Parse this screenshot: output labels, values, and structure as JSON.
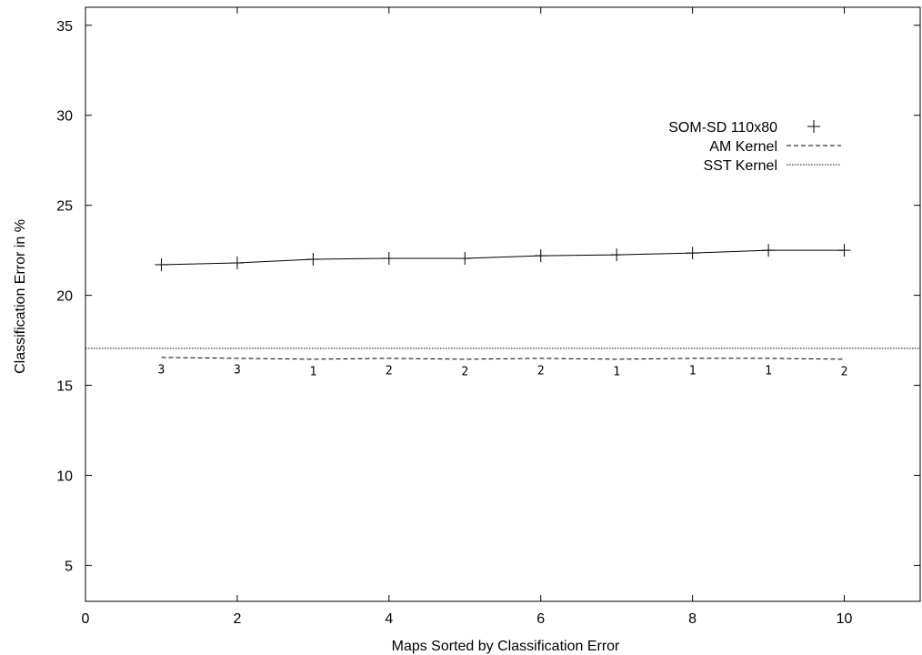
{
  "chart_data": {
    "type": "line",
    "title": "",
    "xlabel": "Maps Sorted by Classification Error",
    "ylabel": "Classification Error in %",
    "xlim": [
      0,
      11
    ],
    "ylim": [
      3,
      36
    ],
    "xticks": [
      0,
      2,
      4,
      6,
      8,
      10
    ],
    "yticks": [
      5,
      10,
      15,
      20,
      25,
      30,
      35
    ],
    "grid": false,
    "legend_position": "top-right",
    "series": [
      {
        "name": "SOM-SD 110x80",
        "style": "solid-with-plus-markers",
        "x": [
          1,
          2,
          3,
          4,
          5,
          6,
          7,
          8,
          9,
          10
        ],
        "y": [
          21.7,
          21.8,
          22.0,
          22.05,
          22.05,
          22.2,
          22.25,
          22.35,
          22.5,
          22.5
        ]
      },
      {
        "name": "AM Kernel",
        "style": "dashed",
        "x": [
          1,
          2,
          3,
          4,
          5,
          6,
          7,
          8,
          9,
          10
        ],
        "y": [
          16.55,
          16.5,
          16.45,
          16.5,
          16.45,
          16.5,
          16.45,
          16.5,
          16.5,
          16.45
        ]
      },
      {
        "name": "SST Kernel",
        "style": "dotted",
        "x": [
          0,
          11
        ],
        "y": [
          17.05,
          17.05
        ]
      }
    ],
    "annotations": [
      {
        "x": 1,
        "y": 15.65,
        "text": "3"
      },
      {
        "x": 2,
        "y": 15.65,
        "text": "3"
      },
      {
        "x": 3,
        "y": 15.55,
        "text": "1"
      },
      {
        "x": 4,
        "y": 15.6,
        "text": "2"
      },
      {
        "x": 5,
        "y": 15.55,
        "text": "2"
      },
      {
        "x": 6,
        "y": 15.6,
        "text": "2"
      },
      {
        "x": 7,
        "y": 15.55,
        "text": "1"
      },
      {
        "x": 8,
        "y": 15.6,
        "text": "1"
      },
      {
        "x": 9,
        "y": 15.6,
        "text": "1"
      },
      {
        "x": 10,
        "y": 15.55,
        "text": "2"
      }
    ]
  }
}
